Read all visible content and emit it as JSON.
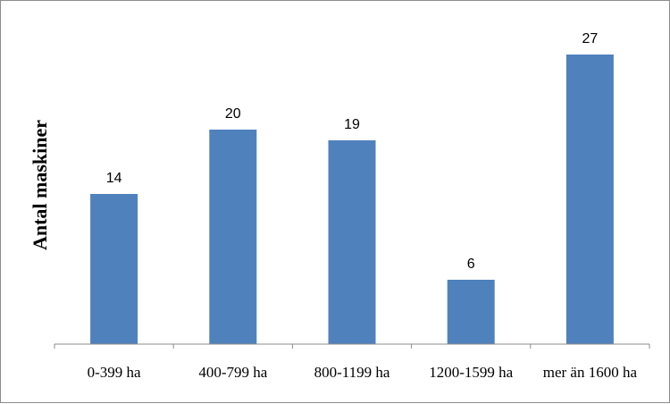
{
  "chart_data": {
    "type": "bar",
    "categories": [
      "0-399 ha",
      "400-799 ha",
      "800-1199 ha",
      "1200-1599 ha",
      "mer än 1600 ha"
    ],
    "values": [
      14,
      20,
      19,
      6,
      27
    ],
    "data_labels": [
      "14",
      "20",
      "19",
      "6",
      "27"
    ],
    "title": "",
    "xlabel": "",
    "ylabel": "Antal maskiner",
    "ylim": [
      0,
      30
    ],
    "grid": false,
    "legend": "none",
    "bar_color": "#4f81bd"
  }
}
